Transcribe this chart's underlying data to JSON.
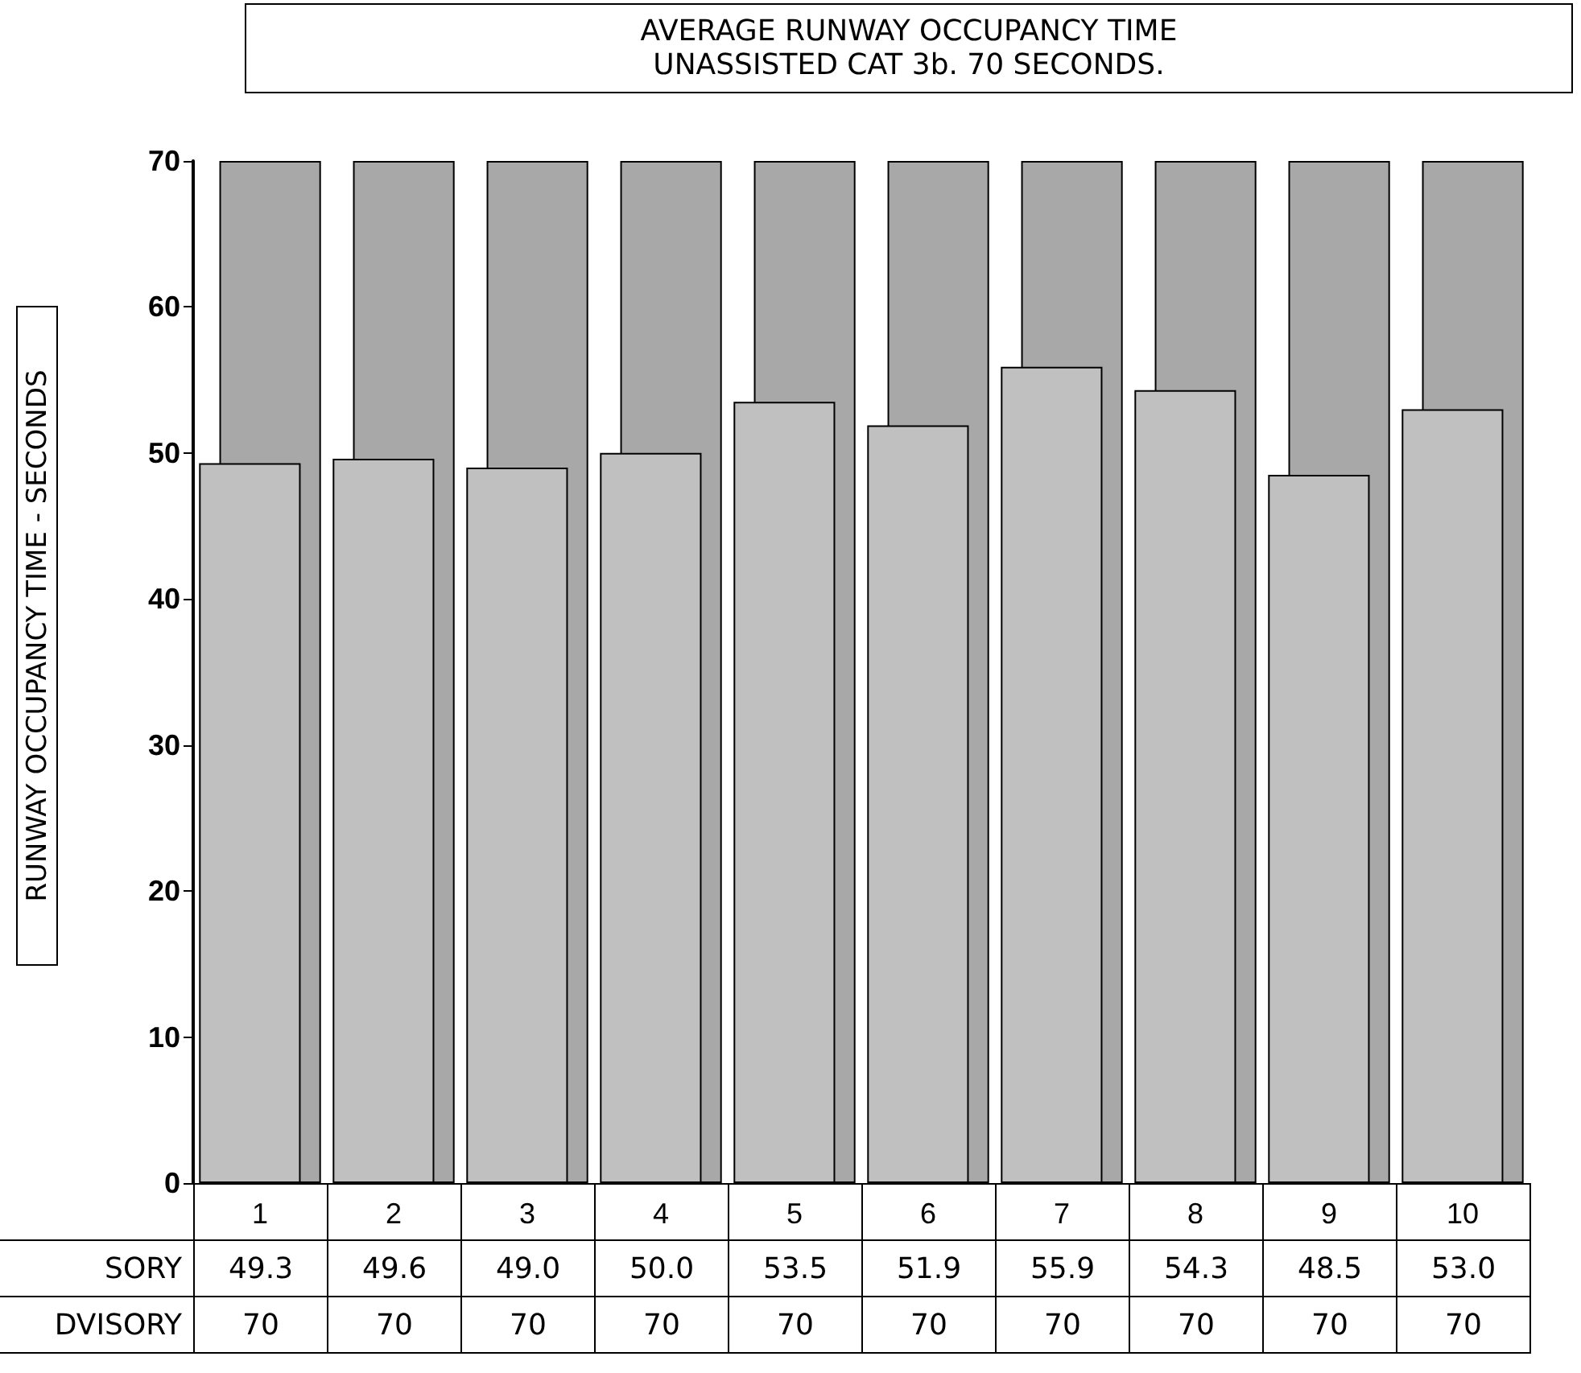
{
  "chart_data": {
    "type": "bar",
    "title": "AVERAGE RUNWAY OCCUPANCY TIME",
    "subtitle": "UNASSISTED CAT 3b. 70 SECONDS.",
    "ylabel": "RUNWAY OCCUPANCY TIME - SECONDS",
    "categories": [
      "1",
      "2",
      "3",
      "4",
      "5",
      "6",
      "7",
      "8",
      "9",
      "10"
    ],
    "series": [
      {
        "name": "SORY",
        "color": "#c0c0c0",
        "values": [
          49.3,
          49.6,
          49.0,
          50.0,
          53.5,
          51.9,
          55.9,
          54.3,
          48.5,
          53.0
        ],
        "value_labels": [
          "49.3",
          "49.6",
          "49.0",
          "50.0",
          "53.5",
          "51.9",
          "55.9",
          "54.3",
          "48.5",
          "53.0"
        ]
      },
      {
        "name": "DVISORY",
        "color": "#a8a8a8",
        "values": [
          70,
          70,
          70,
          70,
          70,
          70,
          70,
          70,
          70,
          70
        ],
        "value_labels": [
          "70",
          "70",
          "70",
          "70",
          "70",
          "70",
          "70",
          "70",
          "70",
          "70"
        ]
      }
    ],
    "ylim": [
      0,
      70
    ],
    "yticks": [
      0,
      10,
      20,
      30,
      40,
      50,
      60,
      70
    ],
    "grid": false,
    "legend": "bottom left"
  }
}
